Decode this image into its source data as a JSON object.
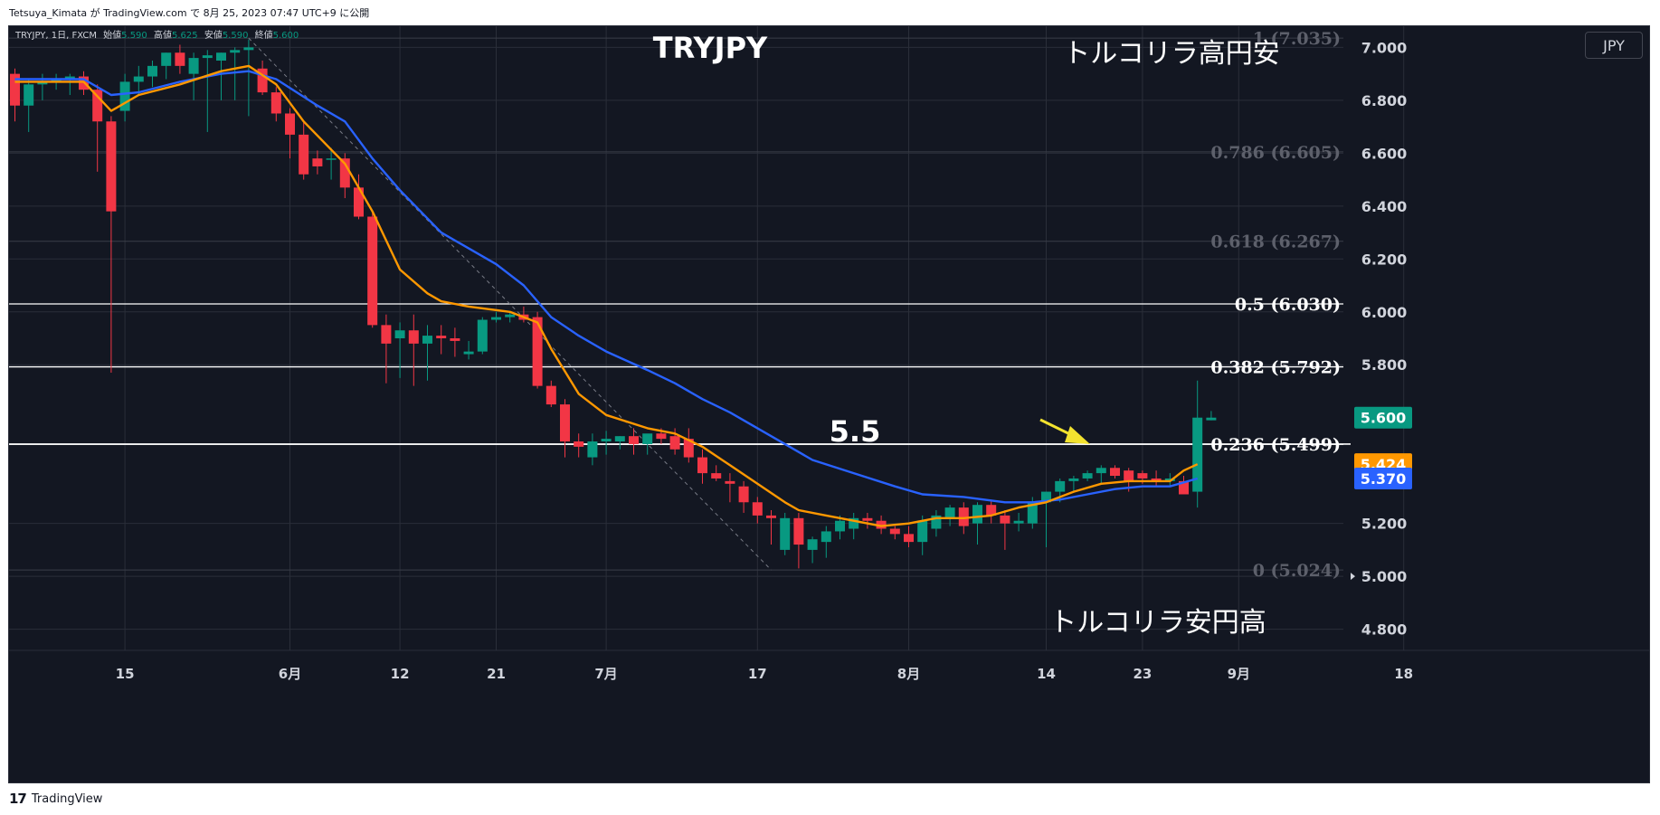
{
  "caption": "Tetsuya_Kimata が TradingView.com で 8月 25, 2023 07:47 UTC+9 に公開",
  "currency_button": "JPY",
  "footer": {
    "brand": "TradingView",
    "mark": "17"
  },
  "colors": {
    "bg": "#131722",
    "up": "#089981",
    "down": "#f23645",
    "ema_fast": "#ff9800",
    "ema_slow": "#2962ff",
    "grid": "#2a2e39",
    "text": "#d1d4dc",
    "fib_dim": "#5d606b",
    "white": "#ffffff",
    "arrow": "#f2e22f"
  },
  "chart_data": {
    "type": "candlestick",
    "symbol_info": {
      "name": "TRYJPY, 1日, FXCM",
      "open_label": "始値",
      "open": "5.590",
      "high_label": "高値",
      "high": "5.625",
      "low_label": "安値",
      "low": "5.590",
      "close_label": "終値",
      "close": "5.600"
    },
    "title": "TRYJPY",
    "annotations": {
      "top_right": "トルコリラ高円安",
      "bottom_right": "トルコリラ安円高",
      "level_label": "5.5"
    },
    "ylim": [
      4.72,
      7.08
    ],
    "y_ticks": [
      "7.000",
      "6.800",
      "6.600",
      "6.400",
      "6.200",
      "6.000",
      "5.800",
      "5.200",
      "5.000",
      "4.800"
    ],
    "x_ticks": [
      {
        "label": "15",
        "bar": 8
      },
      {
        "label": "6月",
        "bar": 20
      },
      {
        "label": "12",
        "bar": 28
      },
      {
        "label": "21",
        "bar": 35
      },
      {
        "label": "7月",
        "bar": 43
      },
      {
        "label": "17",
        "bar": 54
      },
      {
        "label": "8月",
        "bar": 65
      },
      {
        "label": "14",
        "bar": 75
      },
      {
        "label": "23",
        "bar": 82
      },
      {
        "label": "9月",
        "bar": 89
      },
      {
        "label": "18",
        "bar": 101
      }
    ],
    "fibonacci": [
      {
        "label": "1 (7.035)",
        "value": 7.035,
        "style": "dim"
      },
      {
        "label": "0.786 (6.605)",
        "value": 6.605,
        "style": "dim"
      },
      {
        "label": "0.618 (6.267)",
        "value": 6.267,
        "style": "dim"
      },
      {
        "label": "0.5 (6.030)",
        "value": 6.03,
        "style": "bright"
      },
      {
        "label": "0.382 (5.792)",
        "value": 5.792,
        "style": "bright"
      },
      {
        "label": "0.236 (5.499)",
        "value": 5.499,
        "style": "bright"
      },
      {
        "label": "0 (5.024)",
        "value": 5.024,
        "style": "dim"
      }
    ],
    "price_badges": [
      {
        "label": "5.600",
        "value": 5.6,
        "color": "#089981"
      },
      {
        "label": "5.424",
        "value": 5.424,
        "color": "#ff9800"
      },
      {
        "label": "5.370",
        "value": 5.37,
        "color": "#2962ff"
      }
    ],
    "trend_line": {
      "from": {
        "bar": 17,
        "value": 7.035
      },
      "to": {
        "bar": 55,
        "value": 5.024
      }
    },
    "level_line_value": 5.5,
    "candles": [
      [
        6.9,
        6.92,
        6.72,
        6.78
      ],
      [
        6.78,
        6.88,
        6.68,
        6.86
      ],
      [
        6.86,
        6.9,
        6.8,
        6.87
      ],
      [
        6.87,
        6.9,
        6.84,
        6.88
      ],
      [
        6.88,
        6.9,
        6.82,
        6.89
      ],
      [
        6.89,
        6.91,
        6.82,
        6.84
      ],
      [
        6.84,
        6.86,
        6.53,
        6.72
      ],
      [
        6.72,
        6.74,
        5.77,
        6.38
      ],
      [
        6.76,
        6.9,
        6.72,
        6.87
      ],
      [
        6.87,
        6.93,
        6.82,
        6.89
      ],
      [
        6.89,
        6.95,
        6.85,
        6.93
      ],
      [
        6.93,
        6.98,
        6.88,
        6.98
      ],
      [
        6.98,
        7.01,
        6.9,
        6.93
      ],
      [
        6.9,
        6.98,
        6.8,
        6.96
      ],
      [
        6.96,
        6.99,
        6.68,
        6.97
      ],
      [
        6.95,
        6.98,
        6.8,
        6.98
      ],
      [
        6.98,
        7.0,
        6.8,
        6.99
      ],
      [
        6.99,
        7.03,
        6.74,
        7.0
      ],
      [
        6.92,
        6.95,
        6.82,
        6.83
      ],
      [
        6.83,
        6.85,
        6.72,
        6.75
      ],
      [
        6.75,
        6.77,
        6.58,
        6.67
      ],
      [
        6.67,
        6.72,
        6.5,
        6.52
      ],
      [
        6.58,
        6.61,
        6.52,
        6.55
      ],
      [
        6.58,
        6.62,
        6.5,
        6.58
      ],
      [
        6.58,
        6.6,
        6.43,
        6.47
      ],
      [
        6.47,
        6.52,
        6.35,
        6.36
      ],
      [
        6.36,
        6.38,
        5.94,
        5.95
      ],
      [
        5.95,
        5.99,
        5.73,
        5.88
      ],
      [
        5.9,
        5.96,
        5.75,
        5.93
      ],
      [
        5.93,
        5.99,
        5.72,
        5.88
      ],
      [
        5.88,
        5.95,
        5.74,
        5.91
      ],
      [
        5.91,
        5.95,
        5.84,
        5.9
      ],
      [
        5.9,
        5.94,
        5.83,
        5.89
      ],
      [
        5.84,
        5.89,
        5.82,
        5.85
      ],
      [
        5.85,
        5.98,
        5.84,
        5.97
      ],
      [
        5.97,
        6.0,
        5.96,
        5.98
      ],
      [
        5.98,
        6.0,
        5.96,
        5.99
      ],
      [
        5.99,
        6.02,
        5.96,
        5.97
      ],
      [
        5.98,
        6.0,
        5.71,
        5.72
      ],
      [
        5.72,
        5.74,
        5.64,
        5.65
      ],
      [
        5.65,
        5.67,
        5.45,
        5.51
      ],
      [
        5.51,
        5.54,
        5.45,
        5.49
      ],
      [
        5.45,
        5.54,
        5.42,
        5.51
      ],
      [
        5.51,
        5.55,
        5.46,
        5.52
      ],
      [
        5.51,
        5.53,
        5.48,
        5.53
      ],
      [
        5.53,
        5.56,
        5.46,
        5.5
      ],
      [
        5.5,
        5.53,
        5.46,
        5.54
      ],
      [
        5.54,
        5.56,
        5.5,
        5.52
      ],
      [
        5.53,
        5.56,
        5.46,
        5.48
      ],
      [
        5.52,
        5.56,
        5.43,
        5.45
      ],
      [
        5.45,
        5.48,
        5.35,
        5.39
      ],
      [
        5.39,
        5.42,
        5.36,
        5.37
      ],
      [
        5.36,
        5.39,
        5.28,
        5.35
      ],
      [
        5.34,
        5.36,
        5.24,
        5.28
      ],
      [
        5.28,
        5.3,
        5.2,
        5.23
      ],
      [
        5.23,
        5.25,
        5.12,
        5.22
      ],
      [
        5.1,
        5.24,
        5.08,
        5.22
      ],
      [
        5.22,
        5.24,
        5.03,
        5.12
      ],
      [
        5.1,
        5.15,
        5.05,
        5.14
      ],
      [
        5.13,
        5.19,
        5.07,
        5.17
      ],
      [
        5.17,
        5.23,
        5.14,
        5.21
      ],
      [
        5.18,
        5.24,
        5.14,
        5.22
      ],
      [
        5.22,
        5.24,
        5.18,
        5.21
      ],
      [
        5.21,
        5.23,
        5.16,
        5.18
      ],
      [
        5.18,
        5.19,
        5.14,
        5.16
      ],
      [
        5.16,
        5.19,
        5.11,
        5.13
      ],
      [
        5.13,
        5.23,
        5.08,
        5.21
      ],
      [
        5.18,
        5.25,
        5.15,
        5.23
      ],
      [
        5.22,
        5.27,
        5.19,
        5.26
      ],
      [
        5.26,
        5.28,
        5.16,
        5.19
      ],
      [
        5.2,
        5.28,
        5.12,
        5.27
      ],
      [
        5.27,
        5.29,
        5.2,
        5.23
      ],
      [
        5.23,
        5.25,
        5.1,
        5.2
      ],
      [
        5.2,
        5.24,
        5.17,
        5.21
      ],
      [
        5.2,
        5.3,
        5.18,
        5.28
      ],
      [
        5.28,
        5.32,
        5.11,
        5.32
      ],
      [
        5.32,
        5.37,
        5.28,
        5.36
      ],
      [
        5.36,
        5.38,
        5.32,
        5.37
      ],
      [
        5.37,
        5.4,
        5.36,
        5.39
      ],
      [
        5.39,
        5.42,
        5.35,
        5.41
      ],
      [
        5.41,
        5.42,
        5.37,
        5.38
      ],
      [
        5.4,
        5.41,
        5.32,
        5.36
      ],
      [
        5.39,
        5.4,
        5.35,
        5.37
      ],
      [
        5.37,
        5.4,
        5.34,
        5.36
      ],
      [
        5.36,
        5.39,
        5.34,
        5.37
      ],
      [
        5.36,
        5.38,
        5.31,
        5.31
      ],
      [
        5.32,
        5.74,
        5.26,
        5.6
      ],
      [
        5.59,
        5.625,
        5.59,
        5.6
      ]
    ],
    "ema_fast": [
      [
        0,
        6.87
      ],
      [
        5,
        6.87
      ],
      [
        7,
        6.76
      ],
      [
        9,
        6.82
      ],
      [
        12,
        6.86
      ],
      [
        15,
        6.91
      ],
      [
        17,
        6.93
      ],
      [
        19,
        6.86
      ],
      [
        21,
        6.72
      ],
      [
        24,
        6.56
      ],
      [
        26,
        6.38
      ],
      [
        28,
        6.16
      ],
      [
        30,
        6.07
      ],
      [
        31,
        6.04
      ],
      [
        33,
        6.02
      ],
      [
        36,
        6.0
      ],
      [
        38,
        5.96
      ],
      [
        39,
        5.86
      ],
      [
        41,
        5.69
      ],
      [
        43,
        5.61
      ],
      [
        46,
        5.56
      ],
      [
        48,
        5.54
      ],
      [
        50,
        5.49
      ],
      [
        52,
        5.42
      ],
      [
        54,
        5.35
      ],
      [
        56,
        5.28
      ],
      [
        57,
        5.25
      ],
      [
        59,
        5.23
      ],
      [
        61,
        5.21
      ],
      [
        63,
        5.19
      ],
      [
        65,
        5.2
      ],
      [
        67,
        5.22
      ],
      [
        69,
        5.22
      ],
      [
        71,
        5.23
      ],
      [
        73,
        5.26
      ],
      [
        75,
        5.28
      ],
      [
        77,
        5.32
      ],
      [
        79,
        5.35
      ],
      [
        81,
        5.36
      ],
      [
        83,
        5.36
      ],
      [
        84,
        5.36
      ],
      [
        85,
        5.4
      ],
      [
        86,
        5.424
      ]
    ],
    "ema_slow": [
      [
        0,
        6.88
      ],
      [
        5,
        6.88
      ],
      [
        7,
        6.82
      ],
      [
        9,
        6.83
      ],
      [
        12,
        6.87
      ],
      [
        15,
        6.9
      ],
      [
        17,
        6.91
      ],
      [
        19,
        6.88
      ],
      [
        22,
        6.78
      ],
      [
        24,
        6.72
      ],
      [
        26,
        6.58
      ],
      [
        28,
        6.46
      ],
      [
        31,
        6.3
      ],
      [
        33,
        6.24
      ],
      [
        35,
        6.18
      ],
      [
        37,
        6.1
      ],
      [
        39,
        5.98
      ],
      [
        41,
        5.91
      ],
      [
        43,
        5.85
      ],
      [
        46,
        5.78
      ],
      [
        48,
        5.73
      ],
      [
        50,
        5.67
      ],
      [
        52,
        5.62
      ],
      [
        54,
        5.56
      ],
      [
        56,
        5.5
      ],
      [
        58,
        5.44
      ],
      [
        61,
        5.39
      ],
      [
        64,
        5.34
      ],
      [
        66,
        5.31
      ],
      [
        69,
        5.3
      ],
      [
        72,
        5.28
      ],
      [
        74,
        5.28
      ],
      [
        76,
        5.29
      ],
      [
        78,
        5.31
      ],
      [
        80,
        5.33
      ],
      [
        82,
        5.34
      ],
      [
        84,
        5.34
      ],
      [
        86,
        5.37
      ]
    ]
  }
}
